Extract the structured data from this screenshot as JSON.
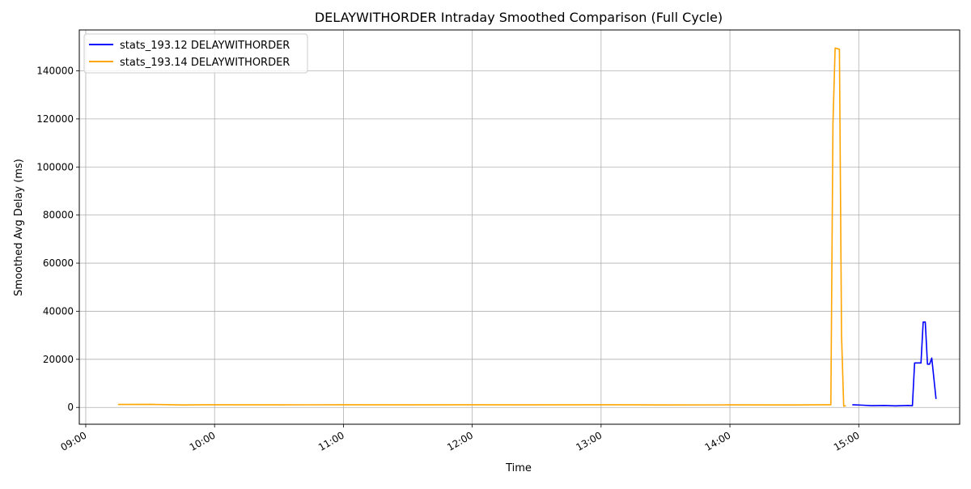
{
  "chart_data": {
    "type": "line",
    "title": "DELAYWITHORDER Intraday Smoothed Comparison (Full Cycle)",
    "xlabel": "Time",
    "ylabel": "Smoothed Avg Delay (ms)",
    "xlim": [
      "08:57",
      "15:47"
    ],
    "ylim": [
      -7000,
      157000
    ],
    "x_ticks": [
      "09:00",
      "10:00",
      "11:00",
      "12:00",
      "13:00",
      "14:00",
      "15:00"
    ],
    "y_ticks": [
      0,
      20000,
      40000,
      60000,
      80000,
      100000,
      120000,
      140000
    ],
    "grid": true,
    "legend_position": "upper-left",
    "series": [
      {
        "name": "stats_193.12 DELAYWITHORDER",
        "color": "#0000ff",
        "points": [
          [
            "14:57",
            1100
          ],
          [
            "15:02",
            900
          ],
          [
            "15:06",
            700
          ],
          [
            "15:12",
            800
          ],
          [
            "15:17",
            650
          ],
          [
            "15:23",
            800
          ],
          [
            "15:25",
            700
          ],
          [
            "15:26",
            18500
          ],
          [
            "15:29",
            18500
          ],
          [
            "15:30",
            35500
          ],
          [
            "15:31",
            35500
          ],
          [
            "15:32",
            18000
          ],
          [
            "15:33",
            18000
          ],
          [
            "15:34",
            20500
          ],
          [
            "15:36",
            3500
          ]
        ]
      },
      {
        "name": "stats_193.14 DELAYWITHORDER",
        "color": "#ffa500",
        "points": [
          [
            "09:15",
            1200
          ],
          [
            "09:30",
            1300
          ],
          [
            "09:45",
            1000
          ],
          [
            "10:00",
            1100
          ],
          [
            "10:30",
            1050
          ],
          [
            "11:00",
            1100
          ],
          [
            "11:30",
            1050
          ],
          [
            "12:00",
            1100
          ],
          [
            "12:30",
            1050
          ],
          [
            "13:00",
            1100
          ],
          [
            "13:30",
            1000
          ],
          [
            "14:00",
            1050
          ],
          [
            "14:30",
            1000
          ],
          [
            "14:47",
            1100
          ],
          [
            "14:48",
            118000
          ],
          [
            "14:49",
            149500
          ],
          [
            "14:51",
            149000
          ],
          [
            "14:52",
            30000
          ],
          [
            "14:53",
            500
          ],
          [
            "14:54",
            700
          ]
        ]
      }
    ]
  }
}
